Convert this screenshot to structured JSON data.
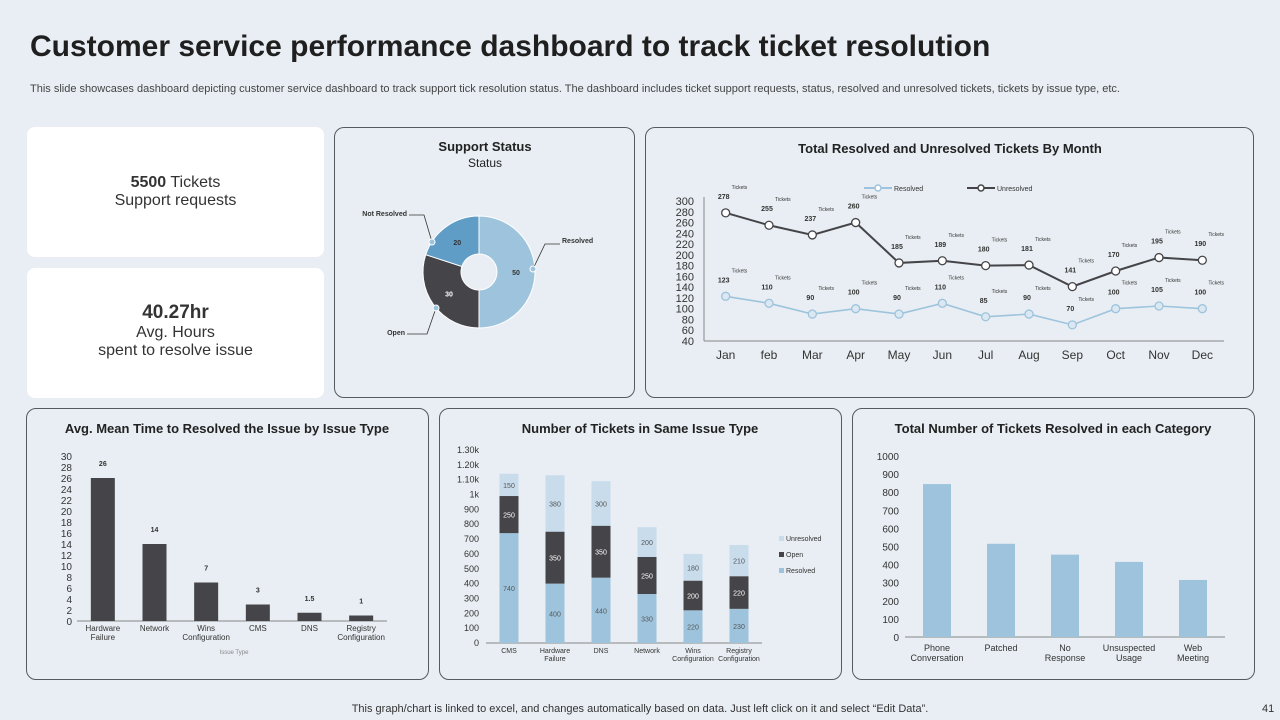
{
  "page": {
    "title": "Customer service performance dashboard to track ticket resolution",
    "subtitle": "This slide showcases dashboard depicting customer service dashboard to track support tick resolution status. The dashboard includes ticket support requests, status, resolved and unresolved tickets, tickets by issue type, etc.",
    "footer": "This graph/chart is linked to excel,  and changes automatically based on data. Just left click on it and select “Edit Data”.",
    "page_number": "41"
  },
  "kpis": {
    "tickets_value": "5500",
    "tickets_unit": " Tickets",
    "tickets_label": "Support requests",
    "hours_value": "40.27hr",
    "hours_label1": "Avg. Hours",
    "hours_label2": "spent to resolve issue"
  },
  "colors": {
    "light": "#9ec4dd",
    "mid": "#5f9cc6",
    "dark": "#454549",
    "paler": "#c8dcec"
  },
  "chart_data": [
    {
      "type": "pie",
      "title": "Support  Status",
      "subtitle": "Status",
      "slices": [
        {
          "name": "Resolved",
          "value": 50
        },
        {
          "name": "Open",
          "value": 30
        },
        {
          "name": "Not Resolved",
          "value": 20
        }
      ]
    },
    {
      "type": "line",
      "title": "Total Resolved and Unresolved Tickets By Month",
      "categories": [
        "Jan",
        "feb",
        "Mar",
        "Apr",
        "May",
        "Jun",
        "Jul",
        "Aug",
        "Sep",
        "Oct",
        "Nov",
        "Dec"
      ],
      "series": [
        {
          "name": "Resolved",
          "values": [
            123,
            110,
            90,
            100,
            90,
            110,
            85,
            90,
            70,
            100,
            105,
            100
          ]
        },
        {
          "name": "Unresolved",
          "values": [
            278,
            255,
            237,
            260,
            185,
            189,
            180,
            181,
            141,
            170,
            195,
            190
          ]
        }
      ],
      "point_label_suffix": "Tickets",
      "yticks": [
        40,
        60,
        80,
        100,
        120,
        140,
        160,
        180,
        200,
        220,
        240,
        260,
        280,
        300
      ],
      "ylim": [
        40,
        300
      ],
      "legend": "top"
    },
    {
      "type": "bar",
      "title": "Avg. Mean Time to Resolved the Issue  by Issue  Type",
      "categories": [
        "Hardware Failure",
        "Network",
        "Wins Configuration",
        "CMS",
        "DNS",
        "Registry Configuration"
      ],
      "values": [
        26,
        14,
        7,
        3,
        1.5,
        1
      ],
      "value_labels": [
        "26",
        "14",
        "7",
        "3",
        "1.5",
        "1"
      ],
      "xlabel": "Issue Type",
      "yticks": [
        0,
        2,
        4,
        6,
        8,
        10,
        12,
        14,
        16,
        18,
        20,
        22,
        24,
        26,
        28,
        30
      ],
      "ylim": [
        0,
        30
      ]
    },
    {
      "type": "bar",
      "stacked": true,
      "title": "Number of Tickets  in Same Issue Type",
      "categories": [
        "CMS",
        "Hardware Failure",
        "DNS",
        "Network",
        "Wins Configuration",
        "Registry Configuration"
      ],
      "series": [
        {
          "name": "Resolved",
          "values": [
            740,
            400,
            440,
            330,
            220,
            230
          ]
        },
        {
          "name": "Open",
          "values": [
            250,
            350,
            350,
            250,
            200,
            220
          ]
        },
        {
          "name": "Unresolved",
          "values": [
            150,
            380,
            300,
            200,
            180,
            210
          ]
        }
      ],
      "ytick_labels": [
        "0",
        "100",
        "200",
        "300",
        "400",
        "500",
        "600",
        "700",
        "800",
        "900",
        "1k",
        "1.10k",
        "1.20k",
        "1.30k"
      ],
      "ylim": [
        0,
        1300
      ],
      "legend": "right"
    },
    {
      "type": "bar",
      "title": "Total Number of Tickets Resolved in each Category",
      "categories": [
        "Phone Conversation",
        "Patched",
        "No Response",
        "Unsuspected Usage",
        "Web Meeting"
      ],
      "values": [
        845,
        515,
        455,
        415,
        315
      ],
      "yticks": [
        0,
        100,
        200,
        300,
        400,
        500,
        600,
        700,
        800,
        900,
        1000
      ],
      "ylim": [
        0,
        1000
      ]
    }
  ]
}
